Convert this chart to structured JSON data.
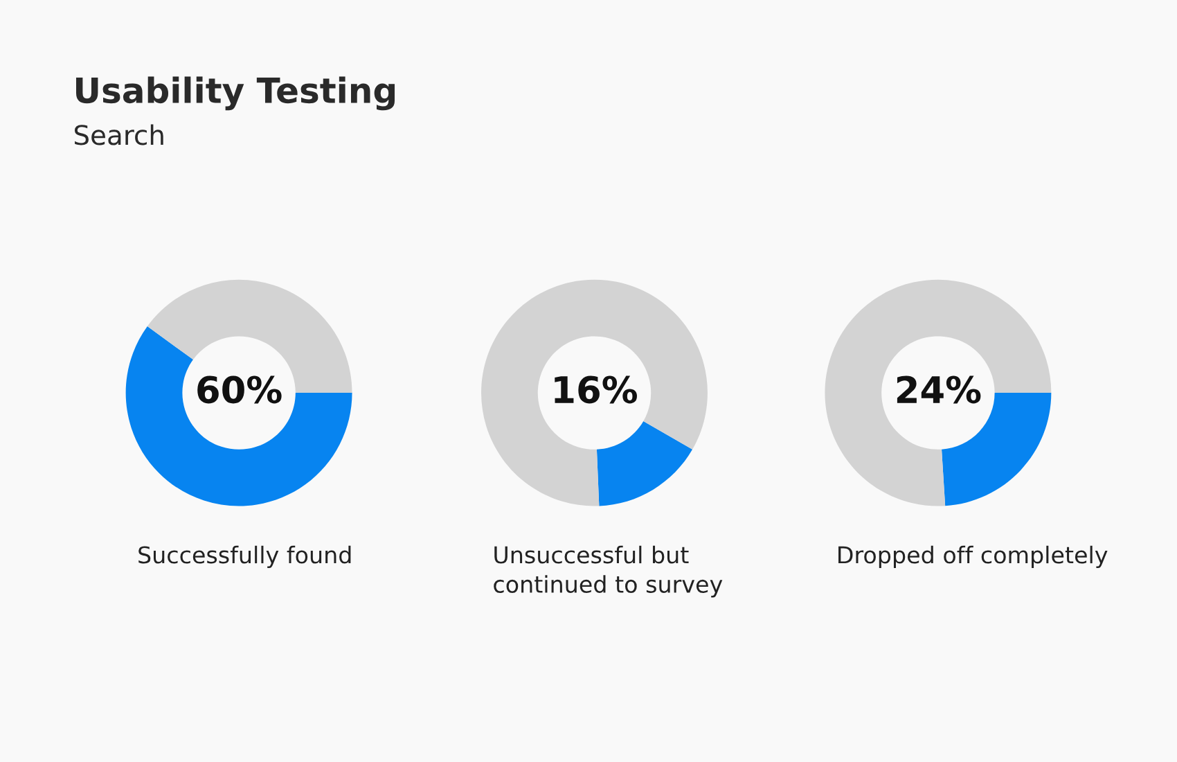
{
  "chart_data": [
    {
      "type": "donut",
      "title": "Usability Testing",
      "subtitle": "Search",
      "categories": [
        "Successfully found",
        null
      ],
      "values": [
        60,
        40
      ],
      "colors": [
        "#0784f0",
        "#d3d3d3"
      ],
      "annotations": [
        "60%"
      ]
    },
    {
      "type": "donut",
      "categories": [
        "Unsuccessful but continued to survey",
        null
      ],
      "values": [
        16,
        84
      ],
      "colors": [
        "#0784f0",
        "#d3d3d3"
      ],
      "annotations": [
        "16%"
      ]
    },
    {
      "type": "donut",
      "categories": [
        "Dropped off completely",
        null
      ],
      "values": [
        24,
        76
      ],
      "colors": [
        "#0784f0",
        "#d3d3d3"
      ],
      "annotations": [
        "24%"
      ]
    }
  ]
}
